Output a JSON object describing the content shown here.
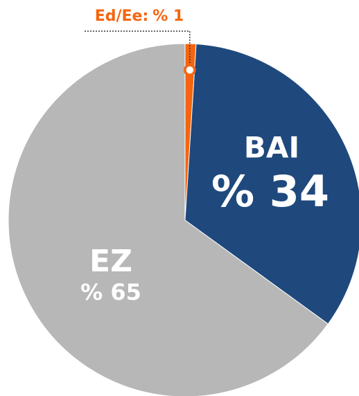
{
  "chart_data": {
    "type": "pie",
    "categories": [
      "Ed/Ee:",
      "BAI",
      "EZ"
    ],
    "values": [
      1,
      34,
      65
    ],
    "value_labels": [
      "% 1",
      "% 34",
      "% 65"
    ],
    "colors": [
      "#f5650f",
      "#1f497d",
      "#b7b7b7"
    ]
  }
}
